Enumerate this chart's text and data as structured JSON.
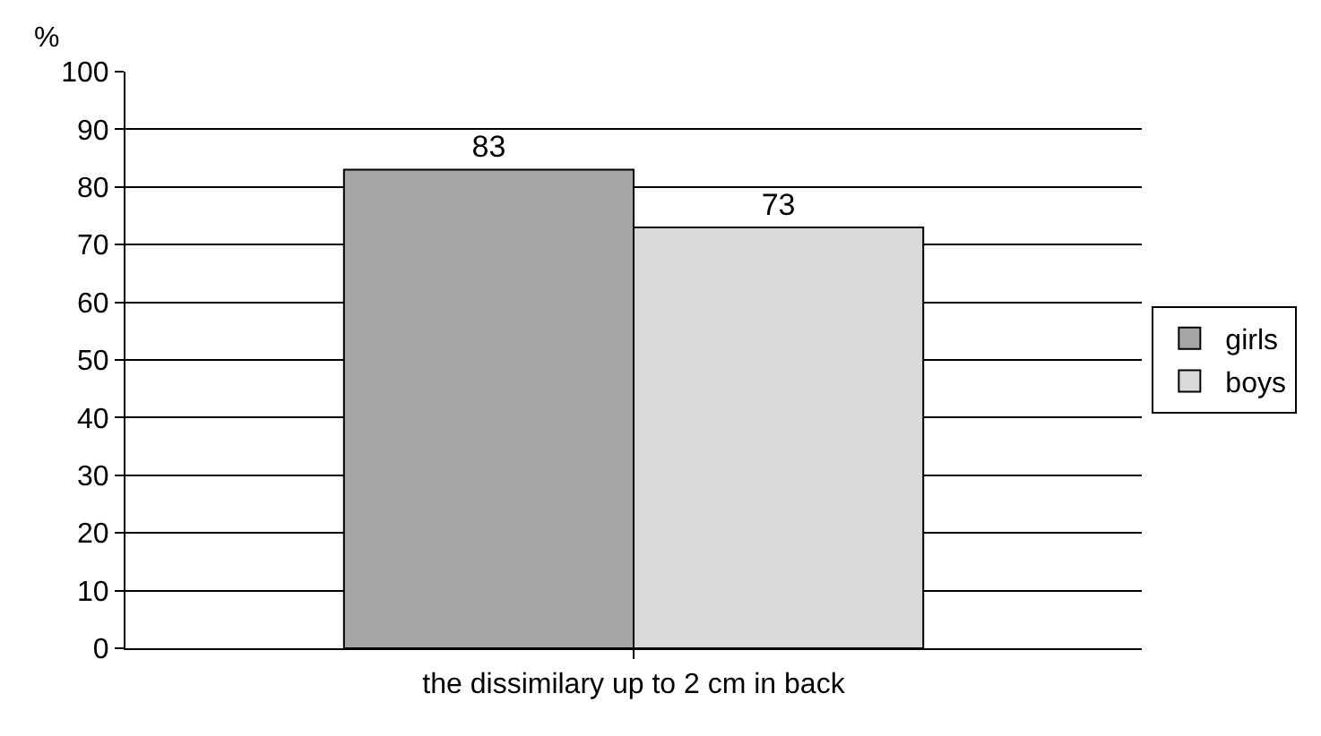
{
  "chart_data": {
    "type": "bar",
    "ylabel": "%",
    "categories": [
      "the dissimilary up to 2 cm in back"
    ],
    "series": [
      {
        "name": "girls",
        "color": "#a6a6a8",
        "values": [
          83
        ]
      },
      {
        "name": "boys",
        "color": "#d9d9d9",
        "values": [
          73
        ]
      }
    ],
    "ylim": [
      0,
      100
    ],
    "yticks": [
      0,
      10,
      20,
      30,
      40,
      50,
      60,
      70,
      80,
      90,
      100
    ],
    "grid": "y",
    "legend": "right",
    "data_labels": true
  }
}
